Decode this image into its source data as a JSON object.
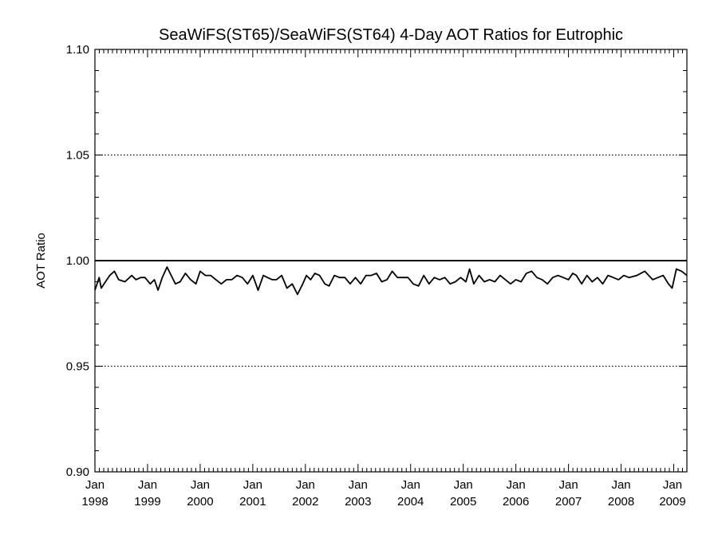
{
  "chart_data": {
    "type": "line",
    "title": "SeaWiFS(ST65)/SeaWiFS(ST64) 4-Day AOT Ratios for Eutrophic",
    "xlabel": "",
    "ylabel": "AOT Ratio",
    "xlim": [
      1998.0,
      2009.25
    ],
    "ylim": [
      0.9,
      1.1
    ],
    "y_ticks": [
      {
        "value": 0.9,
        "label": "0.90"
      },
      {
        "value": 0.95,
        "label": "0.95"
      },
      {
        "value": 1.0,
        "label": "1.00"
      },
      {
        "value": 1.05,
        "label": "1.05"
      },
      {
        "value": 1.1,
        "label": "1.10"
      }
    ],
    "x_ticks": [
      {
        "value": 1998,
        "month": "Jan",
        "year": "1998"
      },
      {
        "value": 1999,
        "month": "Jan",
        "year": "1999"
      },
      {
        "value": 2000,
        "month": "Jan",
        "year": "2000"
      },
      {
        "value": 2001,
        "month": "Jan",
        "year": "2001"
      },
      {
        "value": 2002,
        "month": "Jan",
        "year": "2002"
      },
      {
        "value": 2003,
        "month": "Jan",
        "year": "2003"
      },
      {
        "value": 2004,
        "month": "Jan",
        "year": "2004"
      },
      {
        "value": 2005,
        "month": "Jan",
        "year": "2005"
      },
      {
        "value": 2006,
        "month": "Jan",
        "year": "2006"
      },
      {
        "value": 2007,
        "month": "Jan",
        "year": "2007"
      },
      {
        "value": 2008,
        "month": "Jan",
        "year": "2008"
      },
      {
        "value": 2009,
        "month": "Jan",
        "year": "2009"
      }
    ],
    "gridlines": [
      0.95,
      1.05
    ],
    "reference_line": 1.0,
    "series": [
      {
        "x": [
          1998.0,
          1998.08,
          1998.12,
          1998.2,
          1998.28,
          1998.37,
          1998.45,
          1998.57,
          1998.7,
          1998.78,
          1998.87,
          1998.95,
          1999.05,
          1999.13,
          1999.2,
          1999.28,
          1999.37,
          1999.45,
          1999.53,
          1999.62,
          1999.72,
          1999.82,
          1999.92,
          2000.0,
          2000.1,
          2000.2,
          2000.3,
          2000.4,
          2000.5,
          2000.6,
          2000.7,
          2000.8,
          2000.9,
          2001.0,
          2001.1,
          2001.2,
          2001.28,
          2001.37,
          2001.45,
          2001.55,
          2001.65,
          2001.75,
          2001.85,
          2001.95,
          2002.02,
          2002.1,
          2002.18,
          2002.27,
          2002.37,
          2002.45,
          2002.55,
          2002.65,
          2002.75,
          2002.85,
          2002.95,
          2003.05,
          2003.15,
          2003.25,
          2003.35,
          2003.45,
          2003.55,
          2003.65,
          2003.75,
          2003.85,
          2003.95,
          2004.05,
          2004.15,
          2004.25,
          2004.35,
          2004.45,
          2004.55,
          2004.65,
          2004.75,
          2004.85,
          2004.95,
          2005.05,
          2005.12,
          2005.2,
          2005.3,
          2005.4,
          2005.5,
          2005.6,
          2005.7,
          2005.8,
          2005.9,
          2006.0,
          2006.1,
          2006.2,
          2006.3,
          2006.4,
          2006.5,
          2006.6,
          2006.7,
          2006.8,
          2006.9,
          2007.0,
          2007.08,
          2007.15,
          2007.25,
          2007.35,
          2007.45,
          2007.55,
          2007.65,
          2007.75,
          2007.85,
          2007.95,
          2008.05,
          2008.15,
          2008.3,
          2008.45,
          2008.6,
          2008.7,
          2008.8,
          2008.9,
          2008.97,
          2009.05,
          2009.15,
          2009.25
        ],
        "y": [
          0.986,
          0.992,
          0.987,
          0.99,
          0.993,
          0.995,
          0.991,
          0.99,
          0.993,
          0.991,
          0.992,
          0.992,
          0.989,
          0.991,
          0.986,
          0.992,
          0.997,
          0.993,
          0.989,
          0.99,
          0.994,
          0.991,
          0.989,
          0.995,
          0.993,
          0.993,
          0.991,
          0.989,
          0.991,
          0.991,
          0.993,
          0.992,
          0.989,
          0.993,
          0.986,
          0.993,
          0.992,
          0.991,
          0.991,
          0.993,
          0.987,
          0.989,
          0.984,
          0.989,
          0.993,
          0.991,
          0.994,
          0.993,
          0.989,
          0.988,
          0.993,
          0.992,
          0.992,
          0.989,
          0.992,
          0.989,
          0.993,
          0.993,
          0.994,
          0.99,
          0.991,
          0.995,
          0.992,
          0.992,
          0.992,
          0.989,
          0.988,
          0.993,
          0.989,
          0.992,
          0.991,
          0.992,
          0.989,
          0.99,
          0.992,
          0.99,
          0.996,
          0.989,
          0.993,
          0.99,
          0.991,
          0.99,
          0.993,
          0.991,
          0.989,
          0.991,
          0.99,
          0.994,
          0.995,
          0.992,
          0.991,
          0.989,
          0.992,
          0.993,
          0.992,
          0.991,
          0.994,
          0.993,
          0.989,
          0.993,
          0.99,
          0.992,
          0.989,
          0.993,
          0.992,
          0.991,
          0.993,
          0.992,
          0.993,
          0.995,
          0.991,
          0.992,
          0.993,
          0.989,
          0.987,
          0.996,
          0.995,
          0.993
        ]
      }
    ]
  }
}
